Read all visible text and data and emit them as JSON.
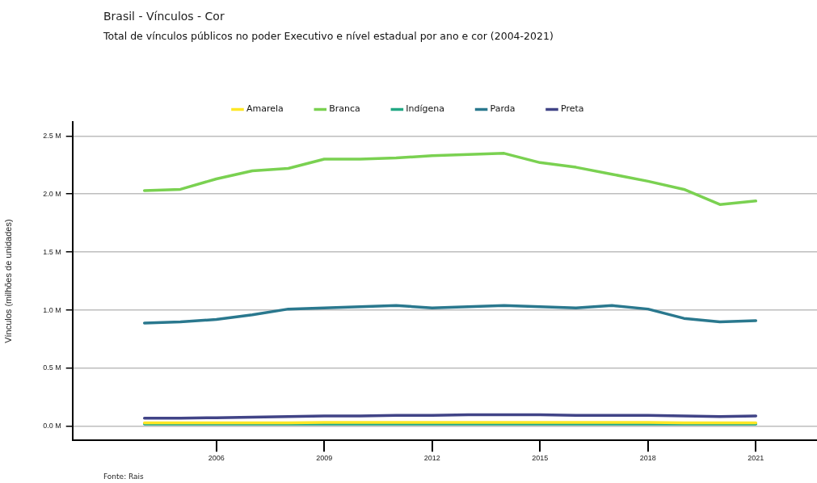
{
  "chart_data": {
    "type": "line",
    "title": "Brasil - Vínculos - Cor",
    "subtitle": "Total de vínculos públicos no poder Executivo e nível estadual por ano e cor (2004-2021)",
    "ylabel": "Vínculos (milhões de unidades)",
    "annotations": [
      "Fonte: Rais"
    ],
    "x": [
      2004,
      2005,
      2006,
      2007,
      2008,
      2009,
      2010,
      2011,
      2012,
      2013,
      2014,
      2015,
      2016,
      2017,
      2018,
      2019,
      2020,
      2021
    ],
    "series": [
      {
        "name": "Amarela",
        "color": "#fde725",
        "values": [
          0.03,
          0.03,
          0.03,
          0.03,
          0.03,
          0.035,
          0.035,
          0.035,
          0.035,
          0.035,
          0.035,
          0.035,
          0.035,
          0.035,
          0.035,
          0.03,
          0.03,
          0.03
        ]
      },
      {
        "name": "Branca",
        "color": "#7ad151",
        "values": [
          2.03,
          2.04,
          2.13,
          2.2,
          2.22,
          2.3,
          2.3,
          2.31,
          2.33,
          2.34,
          2.35,
          2.27,
          2.23,
          2.17,
          2.11,
          2.04,
          1.91,
          1.94
        ]
      },
      {
        "name": "Indígena",
        "color": "#22a884",
        "values": [
          0.02,
          0.02,
          0.02,
          0.02,
          0.02,
          0.02,
          0.02,
          0.02,
          0.02,
          0.02,
          0.02,
          0.02,
          0.02,
          0.02,
          0.02,
          0.02,
          0.02,
          0.02
        ]
      },
      {
        "name": "Parda",
        "color": "#2a788e",
        "values": [
          0.89,
          0.9,
          0.92,
          0.96,
          1.01,
          1.02,
          1.03,
          1.04,
          1.02,
          1.03,
          1.04,
          1.03,
          1.02,
          1.04,
          1.01,
          0.93,
          0.9,
          0.91
        ]
      },
      {
        "name": "Preta",
        "color": "#414487",
        "values": [
          0.07,
          0.07,
          0.075,
          0.08,
          0.085,
          0.09,
          0.09,
          0.095,
          0.095,
          0.1,
          0.1,
          0.1,
          0.095,
          0.095,
          0.095,
          0.09,
          0.085,
          0.09
        ]
      }
    ],
    "xlim": [
      2002,
      2022.7
    ],
    "xticks": [
      2006,
      2009,
      2012,
      2015,
      2018,
      2021
    ],
    "ylim": [
      -0.12,
      2.62
    ],
    "yticks": [
      {
        "value": 0,
        "label": "0.0 M"
      },
      {
        "value": 0.5,
        "label": "0.5 M"
      },
      {
        "value": 1,
        "label": "1.0 M"
      },
      {
        "value": 1.5,
        "label": "1.5 M"
      },
      {
        "value": 2,
        "label": "2.0 M"
      },
      {
        "value": 2.5,
        "label": "2.5 M"
      }
    ],
    "grid": "y",
    "legend": "top",
    "marker": "none",
    "line_style": "solid"
  }
}
